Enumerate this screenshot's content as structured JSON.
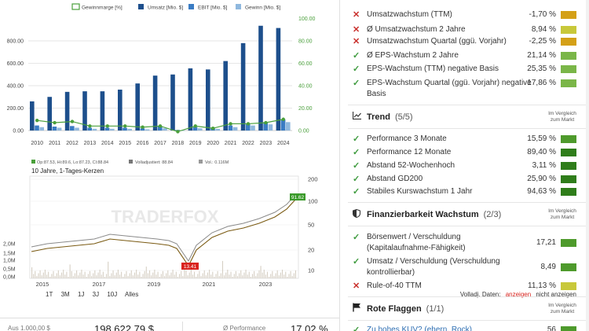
{
  "fundamentals": {
    "legend": [
      "Gewinnmarge [%]",
      "Umsatz [Mio. $]",
      "EBIT [Mio. $]",
      "Gewinn [Mio. $]"
    ],
    "colors": {
      "margin": "#4a9f3b",
      "revenue": "#1d4f8c",
      "ebit": "#3a7cc4",
      "profit": "#8fb8de"
    },
    "left_ticks": [
      "0.00",
      "200.00",
      "400.00",
      "600.00",
      "800.00"
    ],
    "right_ticks": [
      "0.00",
      "20.00",
      "40.00",
      "60.00",
      "80.00",
      "100.00"
    ]
  },
  "chart_data": {
    "type": "bar",
    "categories": [
      "2010",
      "2011",
      "2012",
      "2013",
      "2014",
      "2015",
      "2016",
      "2017",
      "2018",
      "2019",
      "2020",
      "2021",
      "2022",
      "2023",
      "2024"
    ],
    "ylim": [
      0,
      1000
    ],
    "y2lim": [
      0,
      100
    ],
    "series": [
      {
        "name": "Umsatz [Mio. $]",
        "values": [
          260,
          300,
          345,
          350,
          350,
          365,
          420,
          490,
          500,
          555,
          545,
          620,
          780,
          935,
          915
        ]
      },
      {
        "name": "EBIT [Mio. $]",
        "values": [
          45,
          35,
          40,
          25,
          25,
          25,
          20,
          35,
          5,
          30,
          20,
          45,
          55,
          75,
          100
        ]
      },
      {
        "name": "Gewinn [Mio. $]",
        "values": [
          30,
          25,
          25,
          15,
          15,
          15,
          10,
          20,
          0,
          20,
          15,
          30,
          45,
          55,
          75
        ]
      },
      {
        "name": "Gewinnmarge [%]",
        "values": [
          9,
          7,
          8,
          4,
          4,
          4,
          3,
          4,
          -1,
          4,
          2,
          6,
          6,
          7,
          10
        ],
        "axis": "right"
      }
    ]
  },
  "price": {
    "info": "Op:87.53, Hi:89.6, Lo:87.23, Cl:88.84",
    "legend2": "Volladjustiert: 88.84",
    "legend3": "Vol.: 0.116M",
    "subtitle": "10 Jahre, 1-Tages-Kerzen",
    "watermark": "TRADERFOX",
    "current_price": "91.62",
    "low_price": "13.41",
    "x_ticks": [
      "2015",
      "2017",
      "2019",
      "2021",
      "2023"
    ],
    "y_ticks": [
      "10",
      "20",
      "50",
      "100",
      "200"
    ],
    "vol_ticks": [
      "2,0M",
      "1,5M",
      "1,0M",
      "0,5M",
      "0,0M"
    ],
    "ranges": [
      "1T",
      "3M",
      "1J",
      "3J",
      "10J",
      "Alles"
    ],
    "adj_label": "Volladj. Daten:",
    "adj_on": "anzeigen",
    "adj_off": "nicht anzeigen"
  },
  "bottom": {
    "label1": "Aus 1.000,00 $",
    "value1": "198.622,79 $",
    "label2": "Ø Performance",
    "value2": "17,02 %"
  },
  "criteria_top": [
    {
      "ok": false,
      "label": "Umsatzwachstum (TTM)",
      "value": "-1,70 %",
      "color": "#d4a017"
    },
    {
      "ok": false,
      "label": "Ø Umsatzwachstum 2 Jahre",
      "value": "8,94 %",
      "color": "#c8c83a"
    },
    {
      "ok": false,
      "label": "Umsatzwachstum Quartal (ggü. Vorjahr)",
      "value": "-2,25 %",
      "color": "#d4a017"
    },
    {
      "ok": true,
      "label": "Ø EPS-Wachstum 2 Jahre",
      "value": "21,14 %",
      "color": "#7ab648"
    },
    {
      "ok": true,
      "label": "EPS-Wachstum (TTM) negative Basis",
      "value": "25,35 %",
      "color": "#7ab648"
    },
    {
      "ok": true,
      "label": "EPS-Wachstum Quartal (ggü. Vorjahr) negative Basis",
      "value": "17,86 %",
      "color": "#7ab648"
    }
  ],
  "trend": {
    "title": "Trend",
    "count": "(5/5)",
    "note": "Im Vergleich zum Markt",
    "items": [
      {
        "ok": true,
        "label": "Performance 3 Monate",
        "value": "15,59 %",
        "color": "#4e9a2c"
      },
      {
        "ok": true,
        "label": "Performance 12 Monate",
        "value": "89,40 %",
        "color": "#2f7d1a"
      },
      {
        "ok": true,
        "label": "Abstand 52-Wochenhoch",
        "value": "3,11 %",
        "color": "#2f7d1a"
      },
      {
        "ok": true,
        "label": "Abstand GD200",
        "value": "25,90 %",
        "color": "#2f7d1a"
      },
      {
        "ok": true,
        "label": "Stabiles Kurswachstum 1 Jahr",
        "value": "94,63 %",
        "color": "#2f7d1a"
      }
    ]
  },
  "finance": {
    "title": "Finanzierbarkeit Wachstum",
    "count": "(2/3)",
    "note": "Im Vergleich zum Markt",
    "items": [
      {
        "ok": true,
        "label": "Börsenwert / Verschuldung (Kapitalaufnahme-Fähigkeit)",
        "value": "17,21",
        "color": "#4e9a2c"
      },
      {
        "ok": true,
        "label": "Umsatz / Verschuldung (Verschuldung kontrollierbar)",
        "value": "8,49",
        "color": "#4e9a2c"
      },
      {
        "ok": false,
        "label": "Rule-of-40 TTM",
        "value": "11,13 %",
        "color": "#c8c83a"
      }
    ]
  },
  "flags": {
    "title": "Rote Flaggen",
    "count": "(1/1)",
    "note": "Im Vergleich zum Markt",
    "partial_label": "Zu hohes KUV? (ehern. Rock)",
    "partial_value": "56"
  }
}
